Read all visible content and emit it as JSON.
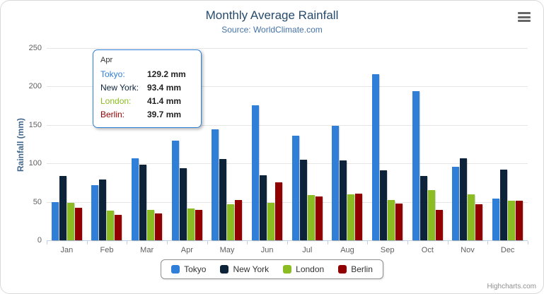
{
  "chart_data": {
    "type": "bar",
    "title": "Monthly Average Rainfall",
    "subtitle": "Source: WorldClimate.com",
    "xlabel": "",
    "ylabel": "Rainfall (mm)",
    "ylim": [
      0,
      250
    ],
    "yticks": [
      0,
      50,
      100,
      150,
      200,
      250
    ],
    "grid": true,
    "legend_position": "bottom",
    "categories": [
      "Jan",
      "Feb",
      "Mar",
      "Apr",
      "May",
      "Jun",
      "Jul",
      "Aug",
      "Sep",
      "Oct",
      "Nov",
      "Dec"
    ],
    "series": [
      {
        "name": "Tokyo",
        "color": "#2f7ed8",
        "values": [
          49.9,
          71.5,
          106.4,
          129.2,
          144.0,
          176.0,
          135.6,
          148.5,
          216.4,
          194.1,
          95.6,
          54.4
        ]
      },
      {
        "name": "New York",
        "color": "#0d233a",
        "values": [
          83.6,
          78.8,
          98.5,
          93.4,
          106.0,
          84.5,
          105.0,
          104.3,
          91.2,
          83.5,
          106.6,
          92.3
        ]
      },
      {
        "name": "London",
        "color": "#8bbc21",
        "values": [
          48.9,
          38.8,
          39.3,
          41.4,
          47.0,
          48.3,
          59.0,
          59.6,
          52.4,
          65.2,
          59.3,
          51.2
        ]
      },
      {
        "name": "Berlin",
        "color": "#910000",
        "values": [
          42.4,
          33.2,
          34.5,
          39.7,
          52.6,
          75.5,
          57.4,
          60.4,
          47.6,
          39.1,
          46.8,
          51.1
        ]
      }
    ]
  },
  "tooltip": {
    "header": "Apr",
    "rows": [
      {
        "name": "Tokyo",
        "label": "Tokyo:",
        "value": "129.2 mm",
        "color": "#2f7ed8"
      },
      {
        "name": "New York",
        "label": "New York:",
        "value": "93.4 mm",
        "color": "#0d233a"
      },
      {
        "name": "London",
        "label": "London:",
        "value": "41.4 mm",
        "color": "#8bbc21"
      },
      {
        "name": "Berlin",
        "label": "Berlin:",
        "value": "39.7 mm",
        "color": "#910000"
      }
    ]
  },
  "credits": "Highcharts.com"
}
